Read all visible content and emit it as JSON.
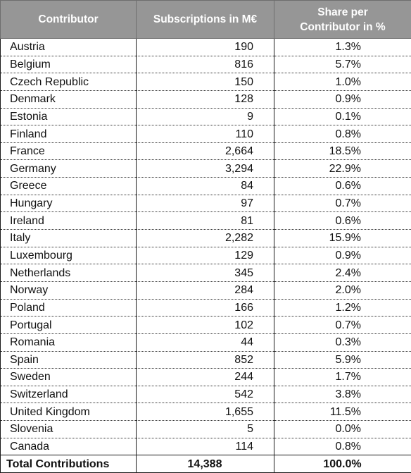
{
  "table": {
    "headers": [
      "Contributor",
      "Subscriptions in M€",
      "Share per\nContributor in %"
    ],
    "header_share_line1": "Share per",
    "header_share_line2": "Contributor in %",
    "rows": [
      {
        "country": "Austria",
        "subscriptions": "190",
        "share": "1.3%"
      },
      {
        "country": "Belgium",
        "subscriptions": "816",
        "share": "5.7%"
      },
      {
        "country": "Czech Republic",
        "subscriptions": "150",
        "share": "1.0%"
      },
      {
        "country": "Denmark",
        "subscriptions": "128",
        "share": "0.9%"
      },
      {
        "country": "Estonia",
        "subscriptions": "9",
        "share": "0.1%"
      },
      {
        "country": "Finland",
        "subscriptions": "110",
        "share": "0.8%"
      },
      {
        "country": "France",
        "subscriptions": "2,664",
        "share": "18.5%"
      },
      {
        "country": "Germany",
        "subscriptions": "3,294",
        "share": "22.9%"
      },
      {
        "country": "Greece",
        "subscriptions": "84",
        "share": "0.6%"
      },
      {
        "country": "Hungary",
        "subscriptions": "97",
        "share": "0.7%"
      },
      {
        "country": "Ireland",
        "subscriptions": "81",
        "share": "0.6%"
      },
      {
        "country": "Italy",
        "subscriptions": "2,282",
        "share": "15.9%"
      },
      {
        "country": "Luxembourg",
        "subscriptions": "129",
        "share": "0.9%"
      },
      {
        "country": "Netherlands",
        "subscriptions": "345",
        "share": "2.4%"
      },
      {
        "country": "Norway",
        "subscriptions": "284",
        "share": "2.0%"
      },
      {
        "country": "Poland",
        "subscriptions": "166",
        "share": "1.2%"
      },
      {
        "country": "Portugal",
        "subscriptions": "102",
        "share": "0.7%"
      },
      {
        "country": "Romania",
        "subscriptions": "44",
        "share": "0.3%"
      },
      {
        "country": "Spain",
        "subscriptions": "852",
        "share": "5.9%"
      },
      {
        "country": "Sweden",
        "subscriptions": "244",
        "share": "1.7%"
      },
      {
        "country": "Switzerland",
        "subscriptions": "542",
        "share": "3.8%"
      },
      {
        "country": "United Kingdom",
        "subscriptions": "1,655",
        "share": "11.5%"
      },
      {
        "country": "Slovenia",
        "subscriptions": "5",
        "share": "0.0%"
      },
      {
        "country": "Canada",
        "subscriptions": "114",
        "share": "0.8%"
      }
    ],
    "total": {
      "label": "Total Contributions",
      "subscriptions": "14,388",
      "share": "100.0%"
    }
  },
  "colors": {
    "header_bg": "#969696",
    "header_text": "#ffffff",
    "body_text": "#111111",
    "border": "#1a1a1a"
  }
}
